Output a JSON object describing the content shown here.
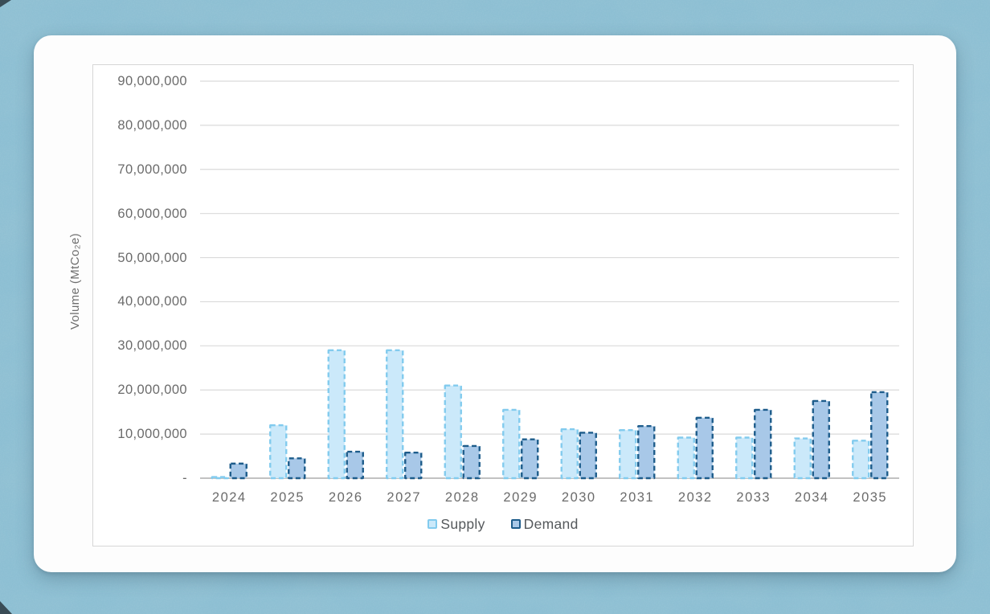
{
  "page": {
    "background_color": "#8dbfd3",
    "card_color": "#fdfdfd"
  },
  "chart_data": {
    "type": "bar",
    "title": "",
    "y_axis_title": "Volume (MtCo₂e)",
    "xlabel": "",
    "categories": [
      "2024",
      "2025",
      "2026",
      "2027",
      "2028",
      "2029",
      "2030",
      "2031",
      "2032",
      "2033",
      "2034",
      "2035"
    ],
    "series": [
      {
        "name": "Supply",
        "fill": "#cbe9fa",
        "stroke": "#82cbee",
        "values": [
          250000,
          12000000,
          29000000,
          29000000,
          21000000,
          15500000,
          11100000,
          10900000,
          9200000,
          9200000,
          9000000,
          8500000
        ]
      },
      {
        "name": "Demand",
        "fill": "#a8c8e8",
        "stroke": "#1d5c8b",
        "values": [
          3300000,
          4500000,
          6000000,
          5800000,
          7300000,
          8800000,
          10300000,
          11800000,
          13700000,
          15500000,
          17500000,
          19500000
        ]
      }
    ],
    "ylim": [
      0,
      90000000
    ],
    "yticks": [
      {
        "label": "90,000,000",
        "value": 90000000
      },
      {
        "label": "80,000,000",
        "value": 80000000
      },
      {
        "label": "70,000,000",
        "value": 70000000
      },
      {
        "label": "60,000,000",
        "value": 60000000
      },
      {
        "label": "50,000,000",
        "value": 50000000
      },
      {
        "label": "40,000,000",
        "value": 40000000
      },
      {
        "label": "30,000,000",
        "value": 30000000
      },
      {
        "label": "20,000,000",
        "value": 20000000
      },
      {
        "label": "10,000,000",
        "value": 10000000
      },
      {
        "label": "-",
        "value": 0
      }
    ],
    "grid": true,
    "legend_position": "bottom",
    "gridline_color": "#dadada",
    "axis_line_color": "#c2c2c2",
    "tick_text_color": "#6b6b6b"
  }
}
